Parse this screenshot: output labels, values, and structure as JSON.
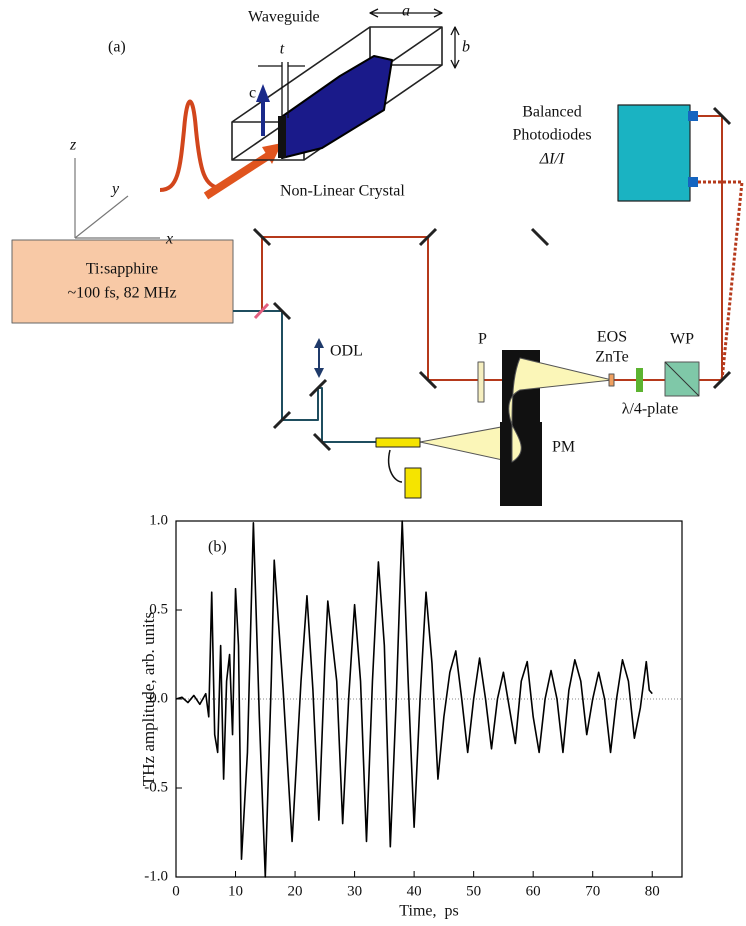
{
  "diagram": {
    "panel_label": "(a)",
    "waveguide": "Waveguide",
    "dim_a": "a",
    "dim_b": "b",
    "dim_t": "t",
    "axis_c": "c",
    "axis_z": "z",
    "axis_y": "y",
    "axis_x": "x",
    "crystal": "Non-Linear Crystal",
    "detector": [
      "Balanced",
      "Photodiodes",
      "ΔI/I"
    ],
    "laser": [
      "Ti:sapphire",
      "~100 fs, 82 MHz"
    ],
    "odl": "ODL",
    "polarizer": "P",
    "eos": [
      "EOS",
      "ZnTe"
    ],
    "wp": "WP",
    "quarter_wave": "λ/4-plate",
    "pm": "PM"
  },
  "chart_data": {
    "type": "line",
    "panel_label": "(b)",
    "xlabel": "Time,  ps",
    "ylabel": "THz amplitude, arb. units",
    "x": [
      0,
      1,
      2,
      3,
      4,
      5,
      5.5,
      6,
      6.5,
      7,
      7.5,
      8,
      8.5,
      9,
      9.5,
      10,
      10.5,
      11,
      12,
      13,
      14,
      15,
      16,
      16.5,
      18,
      19.5,
      21,
      22,
      23,
      24,
      25,
      25.5,
      27,
      28,
      29,
      30,
      31,
      32,
      33,
      34,
      35,
      36,
      37,
      38,
      39,
      40,
      41,
      42,
      43,
      44,
      45,
      46,
      47,
      48,
      49,
      50,
      51,
      52,
      53,
      54,
      55,
      56,
      57,
      58,
      59,
      60,
      61,
      62,
      63,
      64,
      65,
      66,
      67,
      68,
      69,
      70,
      71,
      72,
      73,
      74,
      75,
      76,
      77,
      78,
      79,
      79.5,
      80
    ],
    "values": [
      0,
      0.01,
      -0.02,
      0.02,
      -0.03,
      0.03,
      -0.1,
      0.6,
      -0.2,
      -0.3,
      0.3,
      -0.45,
      0.1,
      0.25,
      -0.2,
      0.62,
      0.3,
      -0.9,
      -0.3,
      0.99,
      -0.1,
      -1.0,
      0.1,
      0.78,
      0.05,
      -0.8,
      0.1,
      0.58,
      0.05,
      -0.68,
      0.2,
      0.55,
      0.1,
      -0.7,
      0.0,
      0.53,
      0.1,
      -0.8,
      0.1,
      0.77,
      0.3,
      -0.83,
      0.0,
      1.0,
      0.1,
      -0.72,
      0.0,
      0.6,
      0.2,
      -0.45,
      -0.1,
      0.15,
      0.27,
      0.0,
      -0.3,
      0.0,
      0.23,
      0.0,
      -0.28,
      0.0,
      0.15,
      -0.05,
      -0.25,
      0.1,
      0.21,
      -0.1,
      -0.3,
      0.0,
      0.16,
      0.0,
      -0.3,
      0.05,
      0.22,
      0.1,
      -0.2,
      0.0,
      0.15,
      0.0,
      -0.3,
      0.0,
      0.22,
      0.1,
      -0.22,
      -0.05,
      0.21,
      0.05,
      0.03
    ],
    "color": "#000000",
    "xlim": [
      0,
      85
    ],
    "ylim": [
      -1,
      1
    ],
    "xticks": [
      0,
      10,
      20,
      30,
      40,
      50,
      60,
      70,
      80
    ],
    "yticks": [
      {
        "value": -1,
        "label": "-1.0"
      },
      {
        "value": -0.5,
        "label": "-0.5"
      },
      {
        "value": 0,
        "label": "0.0"
      },
      {
        "value": 0.5,
        "label": "0.5"
      },
      {
        "value": 1,
        "label": "1.0"
      }
    ],
    "zero_line": true
  }
}
